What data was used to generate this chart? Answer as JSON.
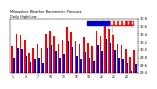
{
  "title": "Milwaukee Weather Barometric Pressure",
  "subtitle": "Daily High/Low",
  "bar_highs": [
    30.1,
    30.42,
    30.38,
    30.25,
    29.92,
    30.05,
    30.15,
    30.05,
    30.42,
    30.48,
    30.35,
    30.15,
    30.25,
    30.58,
    30.45,
    30.22,
    30.15,
    30.32,
    30.18,
    30.1,
    30.5,
    30.35,
    30.65,
    30.55,
    30.38,
    30.15,
    30.12,
    30.02,
    29.82,
    30.0
  ],
  "bar_lows": [
    29.8,
    30.05,
    30.02,
    29.85,
    29.68,
    29.75,
    29.8,
    29.65,
    30.05,
    30.12,
    29.98,
    29.78,
    29.9,
    30.22,
    30.08,
    29.85,
    29.75,
    29.95,
    29.8,
    29.72,
    30.12,
    29.98,
    30.28,
    30.18,
    30.0,
    29.78,
    29.75,
    29.65,
    29.45,
    29.62
  ],
  "color_high": "#FF0000",
  "color_low": "#0000CC",
  "ylim_min": 29.4,
  "ylim_max": 30.8,
  "yticks": [
    29.4,
    29.6,
    29.8,
    30.0,
    30.2,
    30.4,
    30.6,
    30.8
  ],
  "dashed_lines": [
    21.5,
    22.5,
    23.5
  ],
  "background_color": "#FFFFFF",
  "bar_width": 0.38,
  "n_bars": 30
}
